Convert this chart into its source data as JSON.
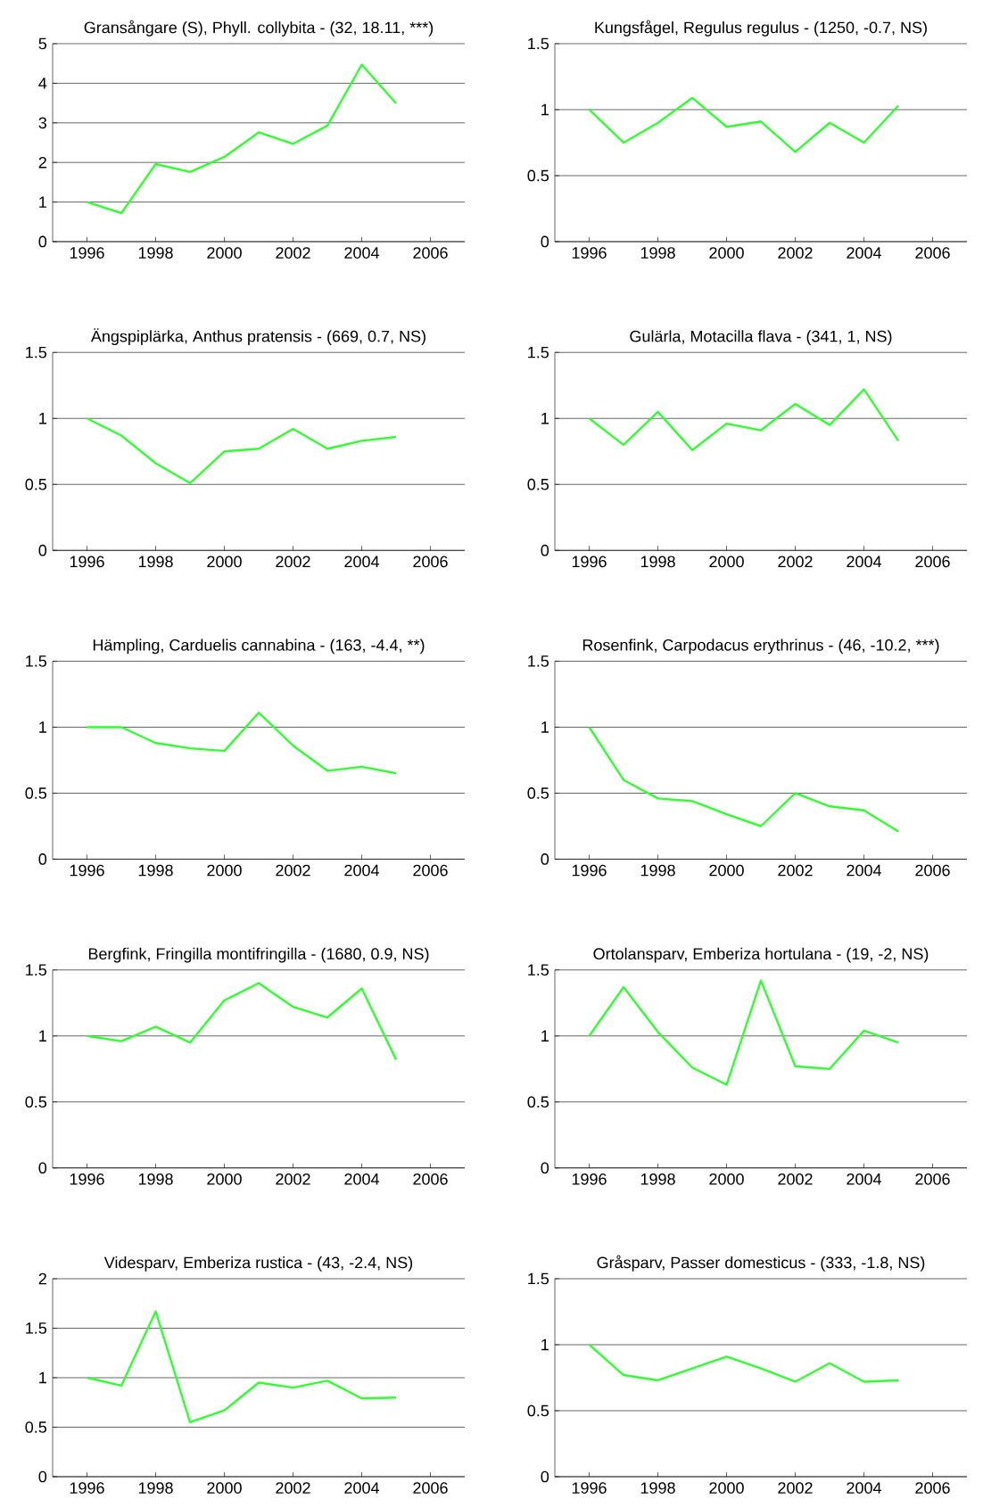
{
  "chart_data": [
    {
      "type": "line",
      "title": "Gransångare (S), Phyll. collybita - (32, 18.11, ***)",
      "x": [
        1996,
        1997,
        1998,
        1999,
        2000,
        2001,
        2002,
        2003,
        2004,
        2005
      ],
      "values": [
        1.0,
        0.72,
        1.96,
        1.76,
        2.14,
        2.76,
        2.47,
        2.93,
        4.47,
        3.49
      ],
      "color": "#33ff33",
      "xlim": [
        1995,
        2007
      ],
      "xticks": [
        1996,
        1998,
        2000,
        2002,
        2004,
        2006
      ],
      "ylim": [
        0,
        5
      ],
      "yticks": [
        0,
        1,
        2,
        3,
        4,
        5
      ],
      "grid": "y"
    },
    {
      "type": "line",
      "title": "Kungsfågel, Regulus regulus - (1250, -0.7, NS)",
      "x": [
        1996,
        1997,
        1998,
        1999,
        2000,
        2001,
        2002,
        2003,
        2004,
        2005
      ],
      "values": [
        1.0,
        0.75,
        0.9,
        1.09,
        0.87,
        0.91,
        0.68,
        0.9,
        0.75,
        1.03
      ],
      "color": "#33ff33",
      "xlim": [
        1995,
        2007
      ],
      "xticks": [
        1996,
        1998,
        2000,
        2002,
        2004,
        2006
      ],
      "ylim": [
        0,
        1.5
      ],
      "yticks": [
        0,
        0.5,
        1,
        1.5
      ],
      "grid": "y"
    },
    {
      "type": "line",
      "title": "Ängspiplärka, Anthus pratensis - (669, 0.7, NS)",
      "x": [
        1996,
        1997,
        1998,
        1999,
        2000,
        2001,
        2002,
        2003,
        2004,
        2005
      ],
      "values": [
        1.0,
        0.87,
        0.66,
        0.51,
        0.75,
        0.77,
        0.92,
        0.77,
        0.83,
        0.86
      ],
      "color": "#33ff33",
      "xlim": [
        1995,
        2007
      ],
      "xticks": [
        1996,
        1998,
        2000,
        2002,
        2004,
        2006
      ],
      "ylim": [
        0,
        1.5
      ],
      "yticks": [
        0,
        0.5,
        1,
        1.5
      ],
      "grid": "y"
    },
    {
      "type": "line",
      "title": "Gulärla, Motacilla flava - (341, 1, NS)",
      "x": [
        1996,
        1997,
        1998,
        1999,
        2000,
        2001,
        2002,
        2003,
        2004,
        2005
      ],
      "values": [
        1.0,
        0.8,
        1.05,
        0.76,
        0.96,
        0.91,
        1.11,
        0.95,
        1.22,
        0.83
      ],
      "color": "#33ff33",
      "xlim": [
        1995,
        2007
      ],
      "xticks": [
        1996,
        1998,
        2000,
        2002,
        2004,
        2006
      ],
      "ylim": [
        0,
        1.5
      ],
      "yticks": [
        0,
        0.5,
        1,
        1.5
      ],
      "grid": "y"
    },
    {
      "type": "line",
      "title": "Hämpling, Carduelis cannabina - (163, -4.4, **)",
      "x": [
        1996,
        1997,
        1998,
        1999,
        2000,
        2001,
        2002,
        2003,
        2004,
        2005
      ],
      "values": [
        1.0,
        1.0,
        0.88,
        0.84,
        0.82,
        1.11,
        0.86,
        0.67,
        0.7,
        0.65
      ],
      "color": "#33ff33",
      "xlim": [
        1995,
        2007
      ],
      "xticks": [
        1996,
        1998,
        2000,
        2002,
        2004,
        2006
      ],
      "ylim": [
        0,
        1.5
      ],
      "yticks": [
        0,
        0.5,
        1,
        1.5
      ],
      "grid": "y"
    },
    {
      "type": "line",
      "title": "Rosenfink, Carpodacus erythrinus - (46, -10.2, ***)",
      "x": [
        1996,
        1997,
        1998,
        1999,
        2000,
        2001,
        2002,
        2003,
        2004,
        2005
      ],
      "values": [
        1.0,
        0.6,
        0.46,
        0.44,
        0.34,
        0.25,
        0.5,
        0.4,
        0.37,
        0.21
      ],
      "color": "#33ff33",
      "xlim": [
        1995,
        2007
      ],
      "xticks": [
        1996,
        1998,
        2000,
        2002,
        2004,
        2006
      ],
      "ylim": [
        0,
        1.5
      ],
      "yticks": [
        0,
        0.5,
        1,
        1.5
      ],
      "grid": "y"
    },
    {
      "type": "line",
      "title": "Bergfink, Fringilla montifringilla - (1680, 0.9, NS)",
      "x": [
        1996,
        1997,
        1998,
        1999,
        2000,
        2001,
        2002,
        2003,
        2004,
        2005
      ],
      "values": [
        1.0,
        0.96,
        1.07,
        0.95,
        1.27,
        1.4,
        1.22,
        1.14,
        1.36,
        0.82
      ],
      "color": "#33ff33",
      "xlim": [
        1995,
        2007
      ],
      "xticks": [
        1996,
        1998,
        2000,
        2002,
        2004,
        2006
      ],
      "ylim": [
        0,
        1.5
      ],
      "yticks": [
        0,
        0.5,
        1,
        1.5
      ],
      "grid": "y"
    },
    {
      "type": "line",
      "title": "Ortolansparv, Emberiza hortulana - (19, -2, NS)",
      "x": [
        1996,
        1997,
        1998,
        1999,
        2000,
        2001,
        2002,
        2003,
        2004,
        2005
      ],
      "values": [
        1.0,
        1.37,
        1.03,
        0.76,
        0.63,
        1.42,
        0.77,
        0.75,
        1.04,
        0.95
      ],
      "color": "#33ff33",
      "xlim": [
        1995,
        2007
      ],
      "xticks": [
        1996,
        1998,
        2000,
        2002,
        2004,
        2006
      ],
      "ylim": [
        0,
        1.5
      ],
      "yticks": [
        0,
        0.5,
        1,
        1.5
      ],
      "grid": "y"
    },
    {
      "type": "line",
      "title": "Videsparv, Emberiza rustica - (43, -2.4, NS)",
      "x": [
        1996,
        1997,
        1998,
        1999,
        2000,
        2001,
        2002,
        2003,
        2004,
        2005
      ],
      "values": [
        1.0,
        0.92,
        1.67,
        0.55,
        0.67,
        0.95,
        0.9,
        0.97,
        0.79,
        0.8
      ],
      "color": "#33ff33",
      "xlim": [
        1995,
        2007
      ],
      "xticks": [
        1996,
        1998,
        2000,
        2002,
        2004,
        2006
      ],
      "ylim": [
        0,
        2
      ],
      "yticks": [
        0,
        0.5,
        1,
        1.5,
        2
      ],
      "grid": "y"
    },
    {
      "type": "line",
      "title": "Gråsparv, Passer domesticus - (333, -1.8, NS)",
      "x": [
        1996,
        1997,
        1998,
        1999,
        2000,
        2001,
        2002,
        2003,
        2004,
        2005
      ],
      "values": [
        1.0,
        0.77,
        0.73,
        0.82,
        0.91,
        0.82,
        0.72,
        0.86,
        0.72,
        0.73
      ],
      "color": "#33ff33",
      "xlim": [
        1995,
        2007
      ],
      "xticks": [
        1996,
        1998,
        2000,
        2002,
        2004,
        2006
      ],
      "ylim": [
        0,
        1.5
      ],
      "yticks": [
        0,
        0.5,
        1,
        1.5
      ],
      "grid": "y"
    }
  ]
}
